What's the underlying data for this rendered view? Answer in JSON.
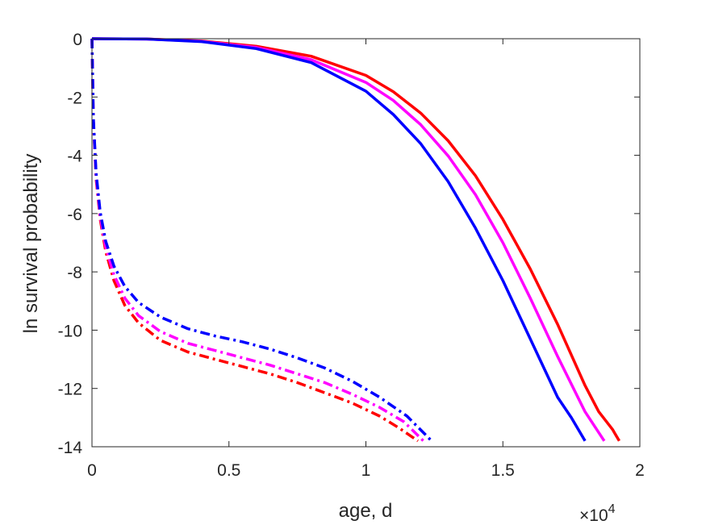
{
  "chart_data": {
    "type": "line",
    "title": "",
    "xlabel": "age, d",
    "ylabel": "ln survival probability",
    "x_exponent_label": "×10",
    "x_exponent_power": "4",
    "xlim": [
      0,
      20000
    ],
    "ylim": [
      -14,
      0
    ],
    "xticks": [
      0,
      5000,
      10000,
      15000,
      20000
    ],
    "xtick_labels": [
      "0",
      "0.5",
      "1",
      "1.5",
      "2"
    ],
    "yticks": [
      0,
      -2,
      -4,
      -6,
      -8,
      -10,
      -12,
      -14
    ],
    "ytick_labels": [
      "0",
      "-2",
      "-4",
      "-6",
      "-8",
      "-10",
      "-12",
      "-14"
    ],
    "grid": false,
    "legend": "none",
    "series": [
      {
        "color": "#ff0000",
        "style": "solid",
        "x": [
          0,
          2000,
          4000,
          6000,
          8000,
          10000,
          11000,
          12000,
          13000,
          14000,
          15000,
          16000,
          17000,
          18000,
          18500,
          19000,
          19250
        ],
        "y": [
          0,
          -0.01,
          -0.08,
          -0.26,
          -0.6,
          -1.26,
          -1.82,
          -2.55,
          -3.5,
          -4.7,
          -6.2,
          -7.9,
          -9.8,
          -11.9,
          -12.8,
          -13.4,
          -13.8
        ]
      },
      {
        "color": "#ff00ff",
        "style": "solid",
        "x": [
          0,
          2000,
          4000,
          6000,
          8000,
          10000,
          11000,
          12000,
          13000,
          14000,
          15000,
          16000,
          17000,
          18000,
          18700
        ],
        "y": [
          0,
          -0.01,
          -0.09,
          -0.3,
          -0.72,
          -1.5,
          -2.12,
          -2.95,
          -4.02,
          -5.35,
          -7.0,
          -8.9,
          -10.9,
          -12.8,
          -13.8
        ]
      },
      {
        "color": "#0000ff",
        "style": "solid",
        "x": [
          0,
          2000,
          4000,
          6000,
          8000,
          10000,
          11000,
          12000,
          13000,
          14000,
          15000,
          16000,
          17000,
          17500,
          18000
        ],
        "y": [
          0,
          -0.01,
          -0.1,
          -0.34,
          -0.82,
          -1.8,
          -2.6,
          -3.6,
          -4.9,
          -6.5,
          -8.3,
          -10.3,
          -12.3,
          -13.0,
          -13.8
        ]
      },
      {
        "color": "#ff0000",
        "style": "dashdot",
        "x": [
          0,
          50,
          150,
          300,
          500,
          800,
          1200,
          1700,
          2500,
          3500,
          4500,
          5500,
          6500,
          7500,
          8500,
          9500,
          10500,
          11200,
          11900
        ],
        "y": [
          0,
          -2.8,
          -4.8,
          -6.2,
          -7.3,
          -8.3,
          -9.15,
          -9.75,
          -10.35,
          -10.75,
          -11.0,
          -11.25,
          -11.5,
          -11.8,
          -12.15,
          -12.5,
          -12.95,
          -13.35,
          -13.8
        ]
      },
      {
        "color": "#ff00ff",
        "style": "dashdot",
        "x": [
          0,
          50,
          150,
          300,
          500,
          800,
          1200,
          1700,
          2500,
          3500,
          4500,
          5500,
          6500,
          7500,
          8500,
          9500,
          10500,
          11400,
          12100
        ],
        "y": [
          0,
          -2.75,
          -4.7,
          -6.1,
          -7.15,
          -8.1,
          -8.9,
          -9.5,
          -10.05,
          -10.45,
          -10.7,
          -10.95,
          -11.2,
          -11.5,
          -11.8,
          -12.2,
          -12.65,
          -13.15,
          -13.8
        ]
      },
      {
        "color": "#0000ff",
        "style": "dashdot",
        "x": [
          0,
          50,
          150,
          300,
          500,
          800,
          1200,
          1700,
          2500,
          3500,
          4500,
          5500,
          6500,
          7500,
          8500,
          9500,
          10500,
          11500,
          12400
        ],
        "y": [
          0,
          -2.7,
          -4.6,
          -5.95,
          -6.95,
          -7.8,
          -8.5,
          -9.05,
          -9.55,
          -9.95,
          -10.2,
          -10.4,
          -10.65,
          -10.95,
          -11.3,
          -11.75,
          -12.3,
          -12.95,
          -13.8
        ]
      }
    ]
  }
}
